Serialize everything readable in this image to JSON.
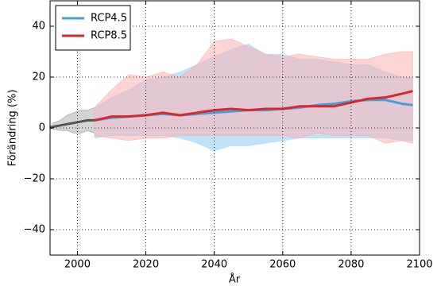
{
  "chart_data": {
    "type": "line",
    "x_label": "År",
    "y_label": "Förändring (%)",
    "xlim": [
      1992,
      2100
    ],
    "ylim": [
      -50,
      50
    ],
    "xticks": [
      2000,
      2020,
      2040,
      2060,
      2080,
      2100
    ],
    "yticks": [
      {
        "value": -40,
        "label": "−40"
      },
      {
        "value": -20,
        "label": "−20"
      },
      0,
      20,
      40
    ],
    "grid": true,
    "legend": "upper-left",
    "series": [
      {
        "color": "#555555",
        "band_color": "#cccccc",
        "x": [
          1992,
          1993,
          1995,
          1997,
          1999,
          2001,
          2003,
          2005
        ],
        "values": [
          0,
          0.5,
          1,
          1.5,
          2,
          2.5,
          3,
          3
        ],
        "lower": [
          0,
          -0.5,
          -1,
          -1,
          -2,
          -2,
          -1,
          -2
        ],
        "upper": [
          0.5,
          2,
          3,
          5,
          6,
          7,
          7,
          8
        ]
      },
      {
        "name": "RCP4.5",
        "color": "#4a9fd8",
        "band_color": "#b5defa",
        "x": [
          2005,
          2010,
          2015,
          2020,
          2025,
          2030,
          2035,
          2040,
          2045,
          2050,
          2055,
          2060,
          2065,
          2070,
          2075,
          2080,
          2085,
          2090,
          2095,
          2098
        ],
        "values": [
          3,
          4,
          4.5,
          5,
          5.5,
          5,
          5.5,
          6,
          6.5,
          7,
          7,
          7.5,
          8,
          9,
          9.5,
          10.5,
          11,
          11,
          9.5,
          9
        ],
        "lower": [
          -4,
          -3,
          -3,
          -3,
          -3,
          -4,
          -6,
          -9,
          -7,
          -7,
          -6,
          -5,
          -4,
          -4,
          -4,
          -4,
          -4,
          -4,
          -5,
          -5
        ],
        "upper": [
          8,
          12,
          15,
          19,
          20,
          22,
          25,
          28,
          31,
          33,
          29,
          29,
          27,
          27,
          26,
          25,
          25,
          22,
          20,
          20
        ]
      },
      {
        "name": "RCP8.5",
        "color": "#d32a2e",
        "band_color": "#ffb0b0",
        "x": [
          2005,
          2010,
          2015,
          2020,
          2025,
          2030,
          2035,
          2040,
          2045,
          2050,
          2055,
          2060,
          2065,
          2070,
          2075,
          2080,
          2085,
          2090,
          2095,
          2098
        ],
        "values": [
          3,
          4.5,
          4.5,
          5,
          6,
          5,
          6,
          7,
          7.5,
          7,
          7.5,
          7.5,
          8.5,
          8.5,
          8.5,
          10,
          11.5,
          12,
          13.5,
          14.5
        ],
        "lower": [
          -3,
          -4,
          -5,
          -4,
          -4,
          -3,
          -3,
          -3,
          -3,
          -3,
          -3,
          -3,
          -4,
          -2,
          -3,
          -3,
          -3,
          -6,
          -5,
          -6
        ],
        "upper": [
          8,
          15,
          21,
          20,
          22,
          20,
          25,
          34,
          35,
          32,
          29,
          28,
          29,
          28,
          27,
          27,
          27,
          29,
          30,
          30
        ]
      }
    ]
  }
}
